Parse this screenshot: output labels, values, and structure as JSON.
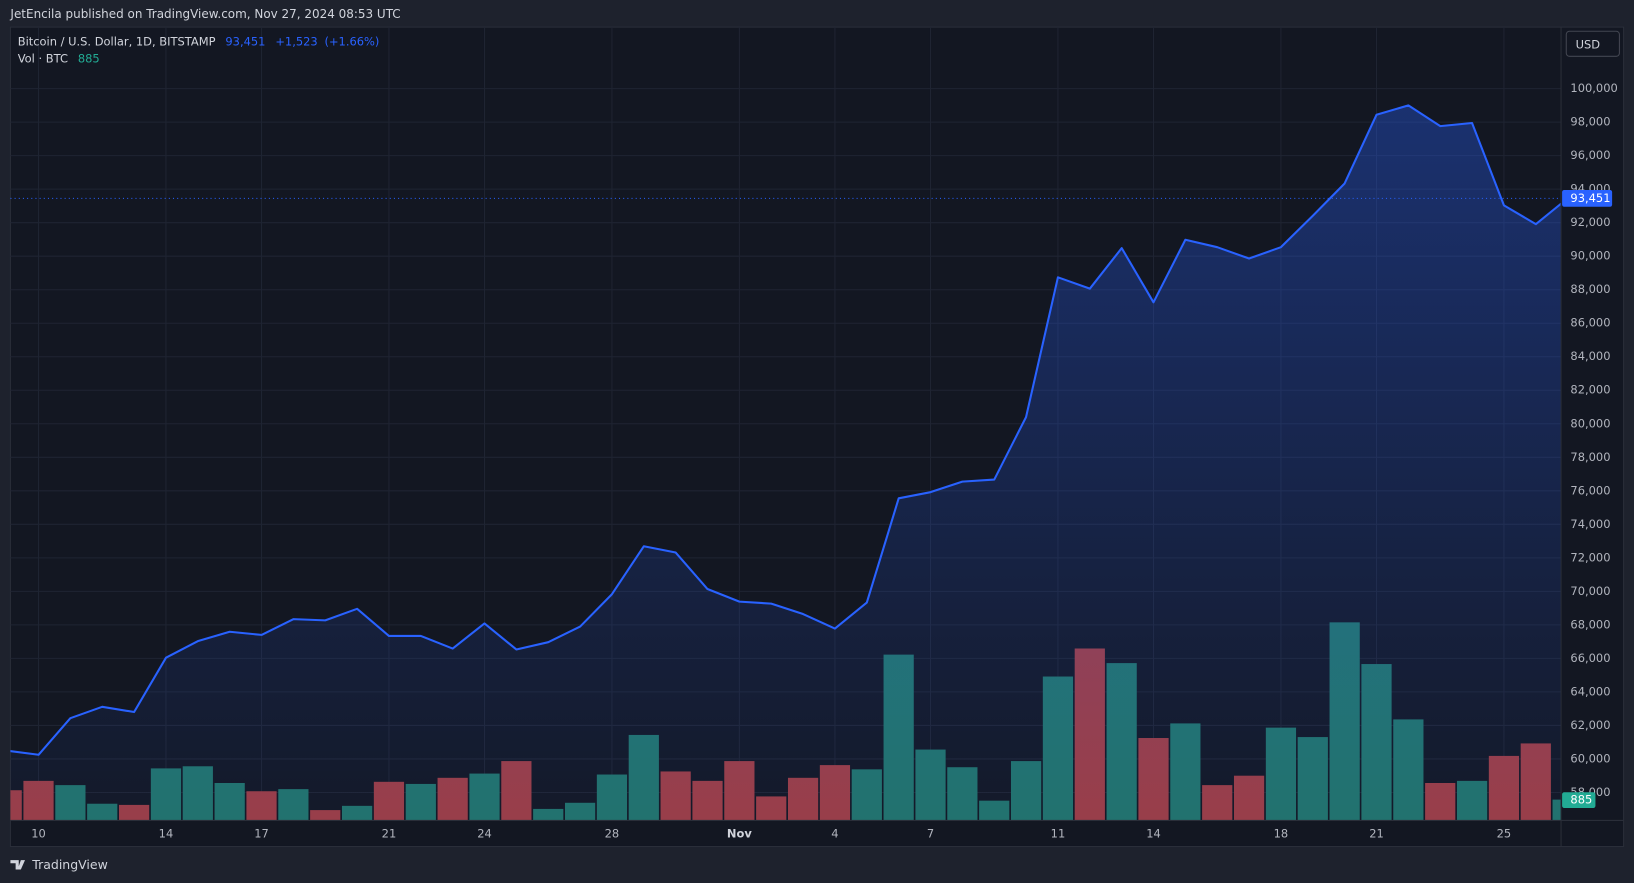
{
  "header": {
    "publisher": "JetEncila published on TradingView.com, Nov 27, 2024 08:53 UTC",
    "brand": "TradingView"
  },
  "chart_data": {
    "type": "area",
    "title": "Bitcoin / U.S. Dollar, 1D, BITSTAMP",
    "currency": "USD",
    "last_price": {
      "value": 93451,
      "label": "93,451"
    },
    "change": "+1,523",
    "change_percent": "(+1.66%)",
    "color": "#2962ff",
    "categories": [
      null,
      "10",
      null,
      null,
      null,
      "14",
      null,
      null,
      "17",
      null,
      null,
      null,
      "21",
      null,
      null,
      "24",
      null,
      null,
      null,
      "28",
      null,
      null,
      null,
      "Nov",
      null,
      null,
      "4",
      null,
      null,
      "7",
      null,
      null,
      null,
      "11",
      null,
      null,
      "14",
      null,
      null,
      null,
      "18",
      null,
      null,
      "21",
      null,
      null,
      null,
      "25",
      null,
      null
    ],
    "values": [
      60500,
      60250,
      62430,
      63110,
      62800,
      66040,
      67030,
      67590,
      67400,
      68340,
      68270,
      68960,
      67340,
      67340,
      66590,
      68090,
      66530,
      66970,
      67900,
      69830,
      72690,
      72320,
      70140,
      69390,
      69270,
      68650,
      67780,
      69330,
      75550,
      75920,
      76550,
      76670,
      80400,
      88740,
      88060,
      90480,
      87250,
      90980,
      90540,
      89860,
      90540,
      92410,
      94340,
      98440,
      99000,
      97760,
      97950,
      93030,
      91910,
      93451
    ],
    "ylim": [
      56330,
      103670
    ],
    "yticks": [
      {
        "value": 58000,
        "label": "58,000"
      },
      {
        "value": 60000,
        "label": "60,000"
      },
      {
        "value": 62000,
        "label": "62,000"
      },
      {
        "value": 64000,
        "label": "64,000"
      },
      {
        "value": 66000,
        "label": "66,000"
      },
      {
        "value": 68000,
        "label": "68,000"
      },
      {
        "value": 70000,
        "label": "70,000"
      },
      {
        "value": 72000,
        "label": "72,000"
      },
      {
        "value": 74000,
        "label": "74,000"
      },
      {
        "value": 76000,
        "label": "76,000"
      },
      {
        "value": 78000,
        "label": "78,000"
      },
      {
        "value": 80000,
        "label": "80,000"
      },
      {
        "value": 82000,
        "label": "82,000"
      },
      {
        "value": 84000,
        "label": "84,000"
      },
      {
        "value": 86000,
        "label": "86,000"
      },
      {
        "value": 88000,
        "label": "88,000"
      },
      {
        "value": 90000,
        "label": "90,000"
      },
      {
        "value": 92000,
        "label": "92,000"
      },
      {
        "value": 94000,
        "label": "94,000"
      },
      {
        "value": 96000,
        "label": "96,000"
      },
      {
        "value": 98000,
        "label": "98,000"
      },
      {
        "value": 100000,
        "label": "100,000"
      }
    ],
    "grid": true,
    "volume": {
      "name": "Vol · BTC",
      "vlim": [
        0,
        33680
      ],
      "values": [
        1283,
        1680,
        1500,
        710,
        660,
        2210,
        2300,
        1590,
        1240,
        1330,
        440,
        620,
        1640,
        1550,
        1810,
        1990,
        2520,
        490,
        750,
        1950,
        3630,
        2080,
        1680,
        2520,
        1020,
        1810,
        2350,
        2170,
        7040,
        3010,
        2260,
        840,
        2520,
        6110,
        7300,
        6680,
        3500,
        4120,
        1500,
        1900,
        3940,
        3540,
        8410,
        6640,
        4290,
        1590,
        1680,
        2740,
        3270,
        885
      ],
      "colors": [
        "#9c3d44",
        "#9c3d44",
        "#22736a",
        "#22736a",
        "#9c3d44",
        "#22736a",
        "#22736a",
        "#22736a",
        "#9c3d44",
        "#22736a",
        "#9c3d44",
        "#22736a",
        "#9c3d44",
        "#22736a",
        "#9c3d44",
        "#22736a",
        "#9c3d44",
        "#22736a",
        "#22736a",
        "#22736a",
        "#22736a",
        "#9c3d44",
        "#9c3d44",
        "#9c3d44",
        "#9c3d44",
        "#9c3d44",
        "#9c3d44",
        "#22736a",
        "#22736a",
        "#22736a",
        "#22736a",
        "#22736a",
        "#22736a",
        "#22736a",
        "#9c3d44",
        "#22736a",
        "#9c3d44",
        "#22736a",
        "#9c3d44",
        "#9c3d44",
        "#22736a",
        "#22736a",
        "#22736a",
        "#22736a",
        "#22736a",
        "#9c3d44",
        "#22736a",
        "#9c3d44",
        "#9c3d44",
        "#22736a"
      ]
    }
  }
}
